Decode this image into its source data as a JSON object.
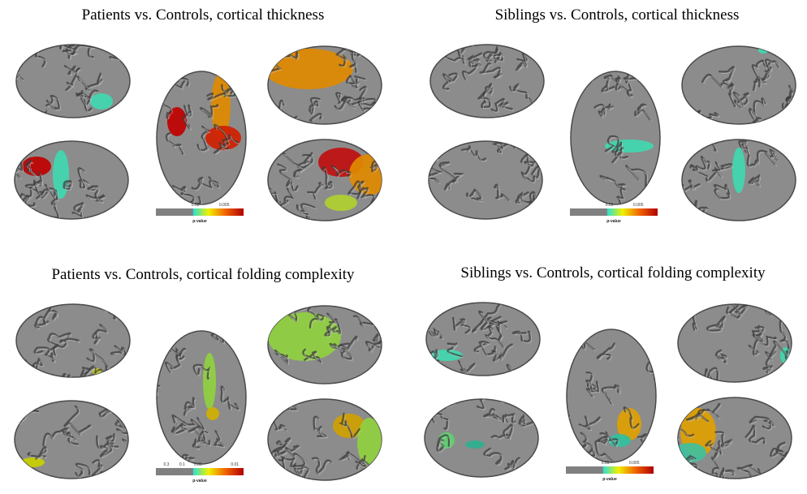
{
  "panels": [
    {
      "title": "Patients vs. Controls, cortical thickness",
      "colorbar": {
        "ticks": [
          0.05,
          0.005
        ],
        "label": "p-value"
      }
    },
    {
      "title": "Siblings vs. Controls, cortical thickness",
      "colorbar": {
        "ticks": [
          0.05,
          0.005
        ],
        "label": "p-value"
      }
    },
    {
      "title": "Patients vs. Controls, cortical folding complexity",
      "colorbar": {
        "ticks": [
          0.3,
          0.1,
          0.05,
          0.01
        ],
        "label": "p-value"
      }
    },
    {
      "title": "Siblings vs. Controls, cortical folding complexity",
      "colorbar": {
        "ticks": [
          0.05,
          0.005
        ],
        "label": "p-value"
      }
    }
  ]
}
